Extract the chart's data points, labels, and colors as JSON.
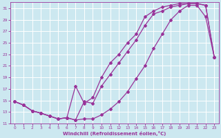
{
  "xlabel": "Windchill (Refroidissement éolien,°C)",
  "bg_color": "#cce8f0",
  "grid_color": "#ffffff",
  "line_color": "#993399",
  "xlim": [
    -0.5,
    23.5
  ],
  "ylim": [
    11,
    32
  ],
  "yticks": [
    11,
    13,
    15,
    17,
    19,
    21,
    23,
    25,
    27,
    29,
    31
  ],
  "xticks": [
    0,
    1,
    2,
    3,
    4,
    5,
    6,
    7,
    8,
    9,
    10,
    11,
    12,
    13,
    14,
    15,
    16,
    17,
    18,
    19,
    20,
    21,
    22,
    23
  ],
  "series1_x": [
    0,
    1,
    2,
    3,
    4,
    5,
    6,
    7,
    8,
    9,
    10,
    11,
    12,
    13,
    14,
    15,
    16,
    17,
    18,
    19,
    20,
    21,
    22,
    23
  ],
  "series1_y": [
    14.8,
    14.2,
    13.2,
    12.8,
    12.3,
    11.8,
    12.0,
    11.6,
    11.8,
    11.8,
    12.5,
    13.5,
    14.8,
    16.5,
    18.8,
    21.0,
    24.0,
    26.5,
    29.0,
    30.5,
    31.5,
    31.5,
    29.5,
    22.5
  ],
  "series2_x": [
    0,
    1,
    2,
    3,
    4,
    5,
    6,
    7,
    8,
    9,
    10,
    11,
    12,
    13,
    14,
    15,
    16,
    17,
    18,
    19,
    20,
    21,
    22,
    23
  ],
  "series2_y": [
    14.8,
    14.2,
    13.2,
    12.8,
    12.3,
    11.8,
    12.0,
    11.6,
    14.8,
    14.5,
    17.5,
    19.5,
    21.5,
    23.5,
    25.5,
    28.0,
    30.0,
    30.5,
    31.2,
    31.5,
    31.8,
    31.8,
    31.5,
    22.5
  ],
  "series3_x": [
    0,
    1,
    2,
    3,
    4,
    5,
    6,
    7,
    8,
    9,
    10,
    11,
    12,
    13,
    14,
    15,
    16,
    17,
    18,
    19,
    20,
    21,
    22,
    23
  ],
  "series3_y": [
    14.8,
    14.2,
    13.2,
    12.8,
    12.3,
    11.8,
    12.0,
    17.5,
    14.5,
    15.5,
    19.0,
    21.5,
    23.0,
    25.0,
    26.5,
    29.5,
    30.5,
    31.2,
    31.5,
    31.8,
    31.8,
    31.8,
    31.5,
    22.5
  ]
}
